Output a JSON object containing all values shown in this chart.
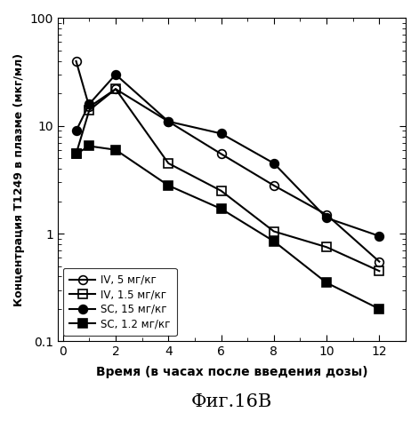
{
  "series": [
    {
      "label": "IV, 5 мг/кг",
      "x": [
        0.5,
        1,
        2,
        4,
        6,
        8,
        10,
        12
      ],
      "y": [
        40,
        15,
        22,
        11,
        5.5,
        2.8,
        1.5,
        0.55
      ],
      "marker": "o",
      "fillstyle": "none",
      "color": "black",
      "linewidth": 1.5,
      "markersize": 7
    },
    {
      "label": "IV, 1.5 мг/кг",
      "x": [
        0.5,
        1,
        2,
        4,
        6,
        8,
        10,
        12
      ],
      "y": [
        5.5,
        14,
        22,
        4.5,
        2.5,
        1.05,
        0.75,
        0.45
      ],
      "marker": "s",
      "fillstyle": "none",
      "color": "black",
      "linewidth": 1.5,
      "markersize": 7
    },
    {
      "label": "SC, 15 мг/кг",
      "x": [
        0.5,
        1,
        2,
        4,
        6,
        8,
        10,
        12
      ],
      "y": [
        9.0,
        16,
        30,
        11,
        8.5,
        4.5,
        1.4,
        0.95
      ],
      "marker": "o",
      "fillstyle": "full",
      "color": "black",
      "linewidth": 1.5,
      "markersize": 7
    },
    {
      "label": "SC, 1.2 мг/кг",
      "x": [
        0.5,
        1,
        2,
        4,
        6,
        8,
        10,
        12
      ],
      "y": [
        5.5,
        6.5,
        6.0,
        2.8,
        1.7,
        0.85,
        0.35,
        0.2
      ],
      "marker": "s",
      "fillstyle": "full",
      "color": "black",
      "linewidth": 1.5,
      "markersize": 7
    }
  ],
  "xlabel": "Время (в часах после введения дозы)",
  "ylabel": "Концентрация Т1249 в плазме (мкг/мл)",
  "title": "Фиг.16В",
  "xlim": [
    -0.2,
    13
  ],
  "ylim": [
    0.1,
    100
  ],
  "xticks": [
    0,
    2,
    4,
    6,
    8,
    10,
    12
  ],
  "xtick_labels": [
    "0",
    "2",
    "4",
    "6",
    "8",
    "10",
    "12"
  ],
  "yticks": [
    0.1,
    1,
    10,
    100
  ],
  "ytick_labels": [
    "0.1",
    "1",
    "10",
    "100"
  ],
  "background_color": "#ffffff",
  "legend_loc": "lower left"
}
